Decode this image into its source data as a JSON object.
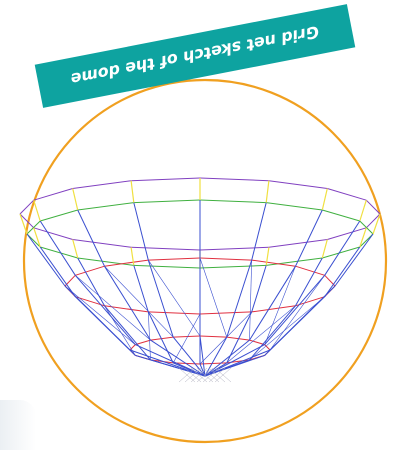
{
  "banner": {
    "text": "Grid net sketch of the dome",
    "color": "#0ea3a0",
    "text_color": "#ffffff",
    "text_rotated_upside_down": true
  },
  "circle": {
    "stroke_color": "#f0a020"
  },
  "wireframe": {
    "shape": "dome / bowl grid net",
    "colors": {
      "meridians": "#3a4fd0",
      "rim_ring": "#8040c0",
      "upper_ring": "#40b040",
      "lower_ring": "#e03040",
      "vertical_edges": "#f0e040"
    }
  }
}
